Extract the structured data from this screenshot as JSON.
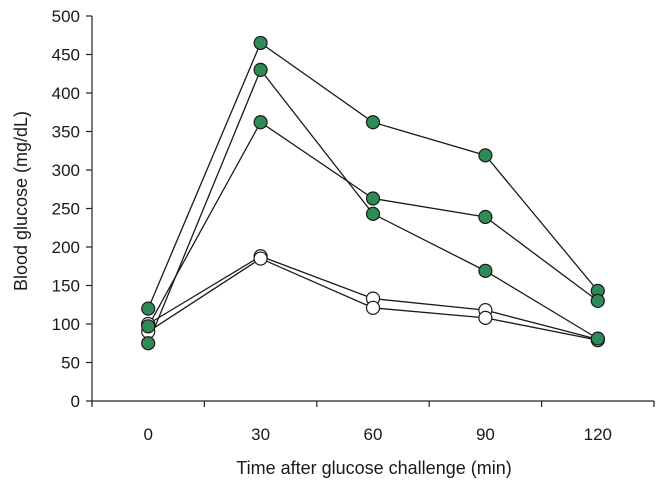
{
  "chart_data": {
    "type": "line",
    "title": "",
    "xlabel": "Time after glucose challenge (min)",
    "ylabel": "Blood glucose (mg/dL)",
    "x": [
      0,
      30,
      60,
      90,
      120
    ],
    "xticks": [
      "0",
      "30",
      "60",
      "90",
      "120"
    ],
    "yticks": [
      "0",
      "50",
      "100",
      "150",
      "200",
      "250",
      "300",
      "350",
      "400",
      "450",
      "500"
    ],
    "xlim": [
      -15,
      135
    ],
    "ylim": [
      0,
      500
    ],
    "grid": false,
    "legend": "none",
    "series": [
      {
        "group": "filled",
        "values": [
          120,
          465,
          362,
          319,
          143
        ]
      },
      {
        "group": "filled",
        "values": [
          75,
          430,
          243,
          169,
          81
        ]
      },
      {
        "group": "filled",
        "values": [
          97,
          362,
          263,
          239,
          130
        ]
      },
      {
        "group": "open",
        "values": [
          100,
          188,
          133,
          118,
          80
        ]
      },
      {
        "group": "open",
        "values": [
          90,
          185,
          121,
          108,
          79
        ]
      }
    ],
    "colors": {
      "filled": "#2e8b57",
      "open": "#ffffff",
      "line": "#1a1a1a"
    }
  }
}
